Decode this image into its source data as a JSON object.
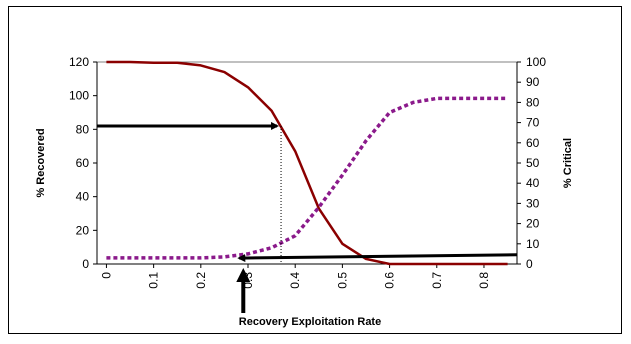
{
  "chart_data": {
    "type": "line",
    "x": [
      0,
      0.05,
      0.1,
      0.15,
      0.2,
      0.25,
      0.3,
      0.35,
      0.4,
      0.45,
      0.5,
      0.55,
      0.6,
      0.65,
      0.7,
      0.75,
      0.8,
      0.85
    ],
    "series": [
      {
        "axis": "left",
        "style": "solid",
        "color": "#8B0000",
        "values": [
          120,
          120,
          119.5,
          119.5,
          118,
          114,
          105,
          91,
          67,
          33,
          12,
          3,
          0,
          0,
          0,
          0,
          0,
          0
        ]
      },
      {
        "axis": "right",
        "style": "dotted",
        "color": "#8B1A8B",
        "values": [
          3,
          3,
          3,
          3,
          3,
          3.5,
          5,
          8,
          14,
          28,
          44,
          61,
          75,
          80,
          82,
          82,
          82,
          82
        ]
      }
    ],
    "xticks": [
      "0",
      "0.1",
      "0.2",
      "0.3",
      "0.4",
      "0.5",
      "0.6",
      "0.7",
      "0.8"
    ],
    "xtick_values": [
      0,
      0.1,
      0.2,
      0.3,
      0.4,
      0.5,
      0.6,
      0.7,
      0.8
    ],
    "xlim": [
      -0.02,
      0.87
    ],
    "ylim_left": [
      0,
      120
    ],
    "ylim_right": [
      0,
      100
    ],
    "yticks_left": [
      "0",
      "20",
      "40",
      "60",
      "80",
      "100",
      "120"
    ],
    "yticks_right": [
      "0",
      "10",
      "20",
      "30",
      "40",
      "50",
      "60",
      "70",
      "80",
      "90",
      "100"
    ],
    "xlabel": "Recovery Exploitation Rate",
    "ylabel_left": "% Recovered",
    "ylabel_right": "% Critical",
    "grid": "horizontal at top only",
    "annotations": [
      {
        "type": "arrow",
        "from": [
          -0.02,
          82
        ],
        "to": [
          0.37,
          82
        ],
        "axis": "left"
      },
      {
        "type": "dotted-vline",
        "x": 0.37,
        "y_from": 0,
        "y_to": 82,
        "axis": "left"
      },
      {
        "type": "arrow",
        "from": [
          0.87,
          5.5
        ],
        "to": [
          0.29,
          3.5
        ],
        "axis": "left"
      },
      {
        "type": "arrow-up",
        "x": 0.29,
        "below_axis": true
      }
    ]
  }
}
